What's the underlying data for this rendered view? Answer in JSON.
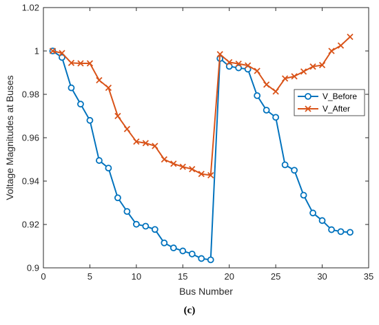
{
  "chart_data": {
    "type": "line",
    "title": "",
    "xlabel": "Bus Number",
    "ylabel": "Voltage Magnitudes at Buses",
    "xlim": [
      0,
      35
    ],
    "ylim": [
      0.9,
      1.02
    ],
    "x_ticks": [
      0,
      5,
      10,
      15,
      20,
      25,
      30,
      35
    ],
    "y_ticks": [
      0.9,
      0.92,
      0.94,
      0.96,
      0.98,
      1,
      1.02
    ],
    "x_tick_labels": [
      "0",
      "5",
      "10",
      "15",
      "20",
      "25",
      "30",
      "35"
    ],
    "y_tick_labels": [
      "0.9",
      "0.92",
      "0.94",
      "0.96",
      "0.98",
      "1",
      "1.02"
    ],
    "grid": false,
    "legend_position": "right",
    "x": [
      1,
      2,
      3,
      4,
      5,
      6,
      7,
      8,
      9,
      10,
      11,
      12,
      13,
      14,
      15,
      16,
      17,
      18,
      19,
      20,
      21,
      22,
      23,
      24,
      25,
      26,
      27,
      28,
      29,
      30,
      31,
      32,
      33
    ],
    "series": [
      {
        "name": "V_Before",
        "color": "#0072BD",
        "marker": "circle",
        "values": [
          1.0,
          0.997,
          0.983,
          0.9755,
          0.968,
          0.9495,
          0.946,
          0.9323,
          0.926,
          0.9201,
          0.9192,
          0.9177,
          0.9115,
          0.9092,
          0.9078,
          0.9064,
          0.9043,
          0.9037,
          0.9965,
          0.9929,
          0.9922,
          0.9916,
          0.9794,
          0.9727,
          0.9694,
          0.9475,
          0.945,
          0.9335,
          0.9253,
          0.9218,
          0.9176,
          0.9167,
          0.9164
        ]
      },
      {
        "name": "V_After",
        "color": "#D95319",
        "marker": "x",
        "values": [
          1.0,
          0.999,
          0.9945,
          0.9943,
          0.9943,
          0.9865,
          0.983,
          0.97,
          0.964,
          0.9582,
          0.9575,
          0.9562,
          0.95,
          0.948,
          0.9466,
          0.9455,
          0.9433,
          0.9427,
          0.9985,
          0.9948,
          0.9941,
          0.9933,
          0.9908,
          0.9845,
          0.9813,
          0.9873,
          0.9883,
          0.9905,
          0.9928,
          0.9935,
          1.0,
          1.0025,
          1.0065
        ]
      }
    ]
  },
  "caption": "(c)"
}
